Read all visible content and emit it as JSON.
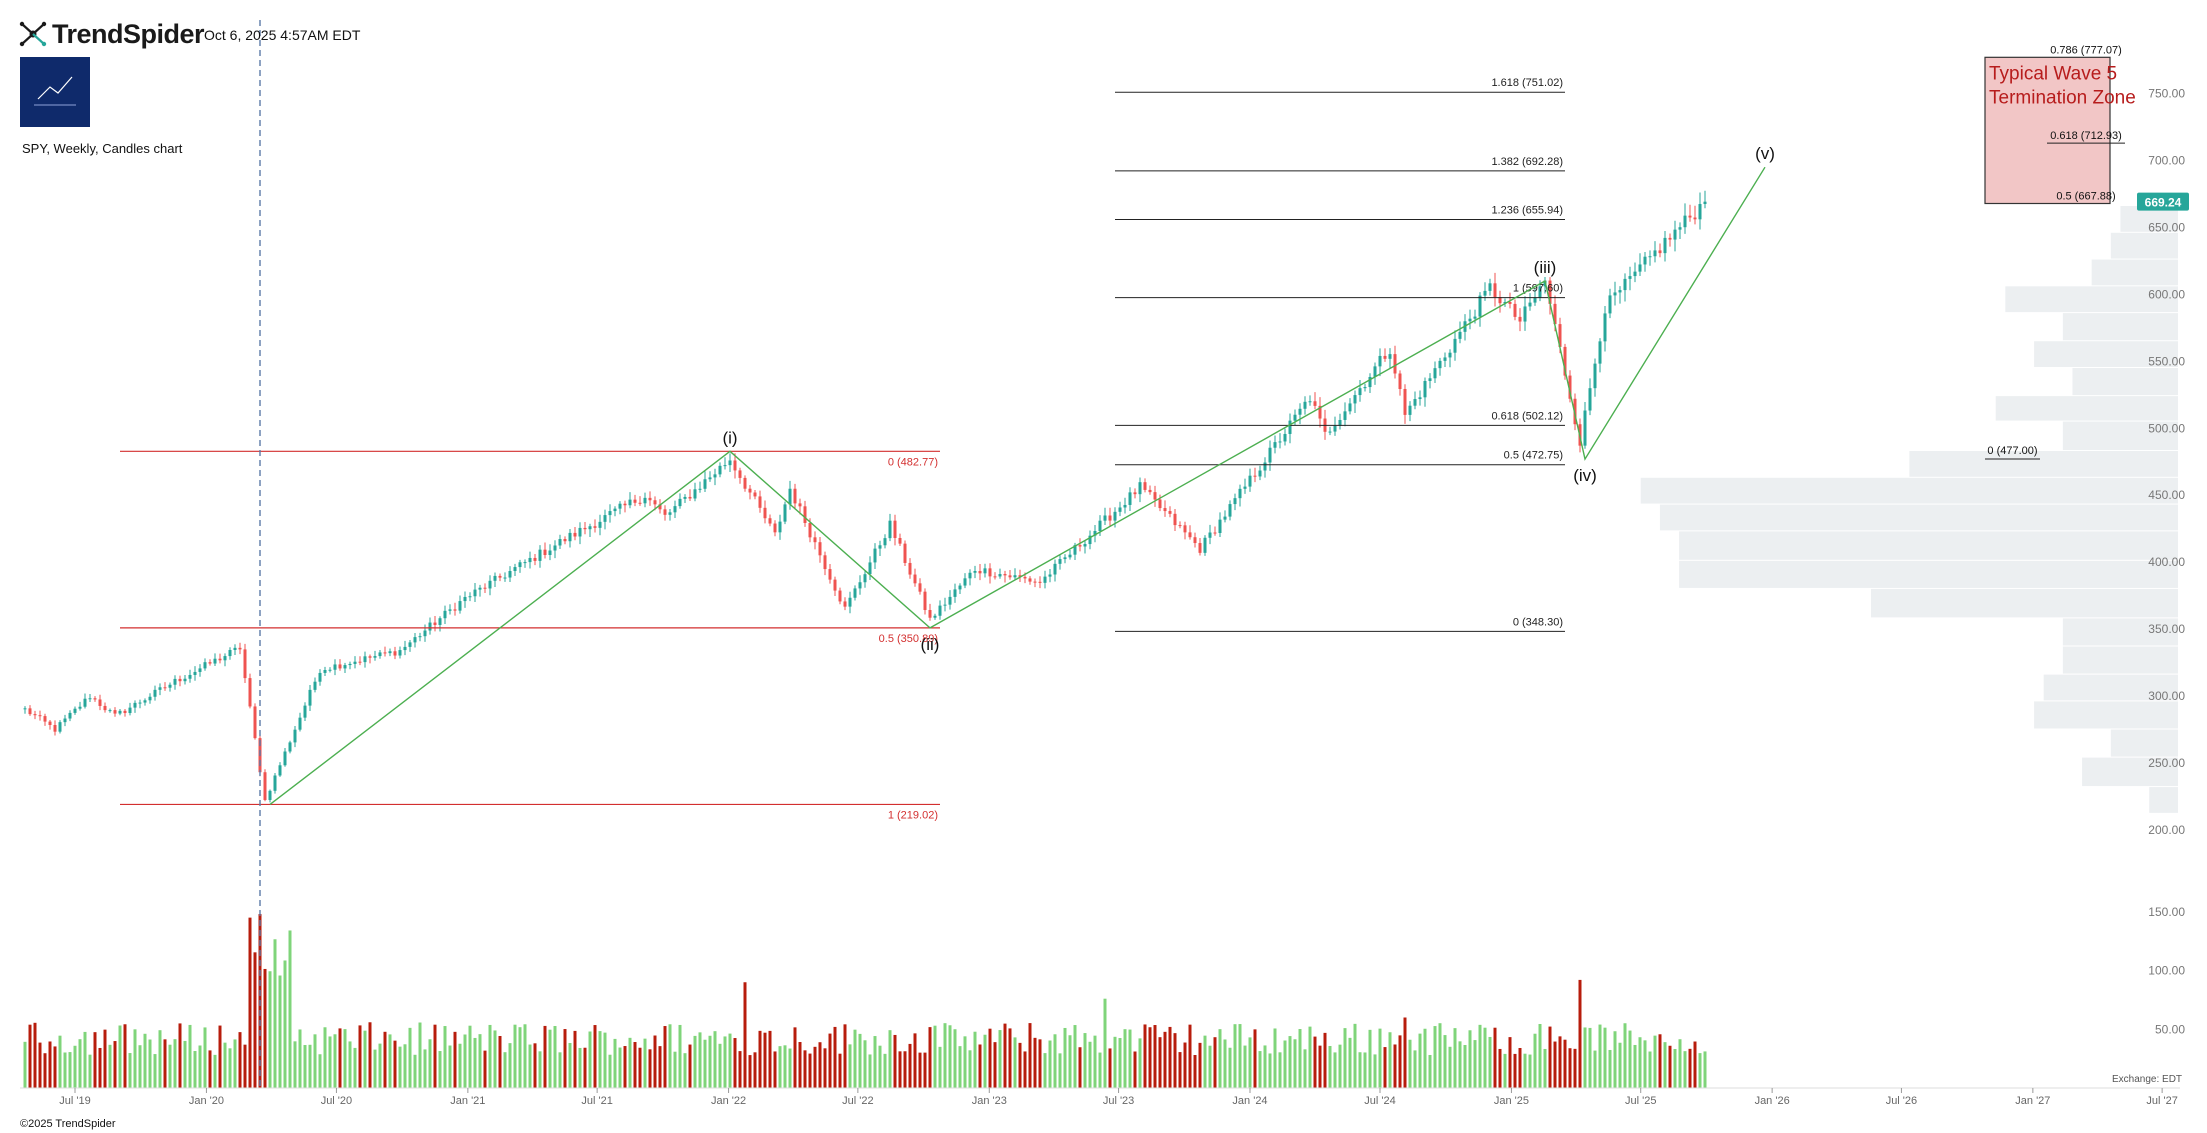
{
  "header": {
    "brand": "TrendSpider",
    "timestamp": "Oct 6, 2025 4:57AM EDT",
    "symbol_desc": "SPY, Weekly, Candles chart",
    "copyright": "©2025 TrendSpider",
    "exchange": "Exchange: EDT"
  },
  "colors": {
    "up": "#26a69a",
    "down": "#ef5350",
    "volume_up": "#7fd47a",
    "volume_down": "#b71c0c",
    "fib_red": "#d32f2f",
    "fib_black": "#222222",
    "wave_line": "#4caf50",
    "volume_profile": "#eceff1",
    "zone_fill": "#f2c6c6",
    "zone_text": "#b71c1c",
    "price_badge": "#26a69a"
  },
  "chart_data": {
    "type": "candlestick",
    "symbol": "SPY",
    "interval": "Weekly",
    "ylim": [
      185,
      790
    ],
    "xlim": [
      "2019-04-15",
      "2027-07-12"
    ],
    "y_ticks": [
      "200.00",
      "250.00",
      "300.00",
      "350.00",
      "400.00",
      "450.00",
      "500.00",
      "550.00",
      "600.00",
      "650.00",
      "700.00",
      "750.00"
    ],
    "volume_ticks": [
      "50.00",
      "100.00",
      "150.00"
    ],
    "x_ticks": [
      {
        "label": "Jul '19",
        "date": "2019-07-01"
      },
      {
        "label": "Jan '20",
        "date": "2020-01-01"
      },
      {
        "label": "Jul '20",
        "date": "2020-07-01"
      },
      {
        "label": "Jan '21",
        "date": "2021-01-01"
      },
      {
        "label": "Jul '21",
        "date": "2021-07-01"
      },
      {
        "label": "Jan '22",
        "date": "2022-01-01"
      },
      {
        "label": "Jul '22",
        "date": "2022-07-01"
      },
      {
        "label": "Jan '23",
        "date": "2023-01-01"
      },
      {
        "label": "Jul '23",
        "date": "2023-07-01"
      },
      {
        "label": "Jan '24",
        "date": "2024-01-01"
      },
      {
        "label": "Jul '24",
        "date": "2024-07-01"
      },
      {
        "label": "Jan '25",
        "date": "2025-01-01"
      },
      {
        "label": "Jul '25",
        "date": "2025-07-01"
      },
      {
        "label": "Jan '26",
        "date": "2026-01-01"
      },
      {
        "label": "Jul '26",
        "date": "2026-07-01"
      },
      {
        "label": "Jan '27",
        "date": "2027-01-01"
      },
      {
        "label": "Jul '27",
        "date": "2027-07-01"
      }
    ],
    "last_price": "669.24",
    "price_path": [
      [
        "2019-04-22",
        290
      ],
      [
        "2019-06-03",
        275
      ],
      [
        "2019-07-22",
        300
      ],
      [
        "2019-08-26",
        285
      ],
      [
        "2019-11-18",
        311
      ],
      [
        "2020-02-17",
        336
      ],
      [
        "2020-03-23",
        222
      ],
      [
        "2020-06-08",
        320
      ],
      [
        "2020-09-28",
        334
      ],
      [
        "2020-12-28",
        373
      ],
      [
        "2021-05-10",
        415
      ],
      [
        "2021-09-06",
        450
      ],
      [
        "2021-10-04",
        434
      ],
      [
        "2022-01-03",
        477
      ],
      [
        "2022-03-07",
        420
      ],
      [
        "2022-03-28",
        455
      ],
      [
        "2022-06-13",
        365
      ],
      [
        "2022-08-15",
        428
      ],
      [
        "2022-10-10",
        357
      ],
      [
        "2022-12-12",
        395
      ],
      [
        "2023-03-13",
        385
      ],
      [
        "2023-07-31",
        456
      ],
      [
        "2023-10-23",
        410
      ],
      [
        "2024-03-25",
        523
      ],
      [
        "2024-04-15",
        495
      ],
      [
        "2024-07-15",
        560
      ],
      [
        "2024-08-05",
        510
      ],
      [
        "2024-12-02",
        605
      ],
      [
        "2025-01-13",
        580
      ],
      [
        "2025-02-17",
        610
      ],
      [
        "2025-04-07",
        490
      ],
      [
        "2025-05-12",
        590
      ],
      [
        "2025-07-28",
        635
      ],
      [
        "2025-09-29",
        669.24
      ]
    ],
    "volume_spikes": [
      {
        "date": "2020-03-02",
        "value": 145
      },
      {
        "date": "2020-03-16",
        "value": 148
      },
      {
        "date": "2022-01-24",
        "value": 90
      },
      {
        "date": "2025-04-07",
        "value": 92
      },
      {
        "date": "2023-06-12",
        "value": 76
      },
      {
        "date": "2024-08-05",
        "value": 60
      }
    ],
    "fib_retracement_red": {
      "start_date": "2019-09-02",
      "end_date": "2022-10-24",
      "levels": [
        {
          "label": "0 (482.77)",
          "value": 482.77
        },
        {
          "label": "0.5 (350.89)",
          "value": 350.89
        },
        {
          "label": "1 (219.02)",
          "value": 219.02
        }
      ]
    },
    "fib_extension": {
      "start_date": "2023-06-26",
      "end_date": "2025-03-17",
      "levels": [
        {
          "label": "1.618 (751.02)",
          "value": 751.02
        },
        {
          "label": "1.382 (692.28)",
          "value": 692.28
        },
        {
          "label": "1.236 (655.94)",
          "value": 655.94
        },
        {
          "label": "1 (597.60)",
          "value": 597.6
        },
        {
          "label": "0.618 (502.12)",
          "value": 502.12
        },
        {
          "label": "0.5 (472.75)",
          "value": 472.75
        },
        {
          "label": "0 (348.30)",
          "value": 348.3
        }
      ]
    },
    "wave_path": [
      {
        "date": "2020-03-30",
        "value": 219
      },
      {
        "date": "2022-01-03",
        "value": 482.77
      },
      {
        "date": "2022-10-10",
        "value": 350.89
      },
      {
        "date": "2025-02-17",
        "value": 610
      },
      {
        "date": "2025-04-14",
        "value": 477
      },
      {
        "date": "2025-12-22",
        "value": 695
      }
    ],
    "wave_labels": [
      {
        "text": "(i)",
        "date": "2022-01-03",
        "value": 482.77,
        "pos": "above"
      },
      {
        "text": "(ii)",
        "date": "2022-10-10",
        "value": 350.89,
        "pos": "below"
      },
      {
        "text": "(iii)",
        "date": "2025-02-17",
        "value": 610,
        "pos": "above"
      },
      {
        "text": "(iv)",
        "date": "2025-04-14",
        "value": 477,
        "pos": "below"
      },
      {
        "text": "(v)",
        "date": "2025-12-22",
        "value": 695,
        "pos": "above"
      }
    ],
    "event_line_date": "2020-03-16",
    "termination_zone": {
      "title": "Typical Wave 5 Termination Zone",
      "start_date": "2026-10-26",
      "end_date": "2027-04-19",
      "top": 777.07,
      "bottom": 667.88,
      "levels": [
        {
          "label": "0.786 (777.07)",
          "value": 777.07
        },
        {
          "label": "0.618 (712.93)",
          "value": 712.93
        },
        {
          "label": "0.5 (667.88)",
          "value": 667.88
        }
      ]
    },
    "target_line": {
      "label": "0 (477.00)",
      "value": 477.0,
      "start_date": "2026-10-26",
      "end_date": "2027-01-11"
    },
    "volume_profile": [
      {
        "low": 212,
        "high": 232,
        "value": 0.015
      },
      {
        "low": 232,
        "high": 254,
        "value": 0.05
      },
      {
        "low": 254,
        "high": 275,
        "value": 0.035
      },
      {
        "low": 275,
        "high": 296,
        "value": 0.075
      },
      {
        "low": 296,
        "high": 316,
        "value": 0.07
      },
      {
        "low": 316,
        "high": 337,
        "value": 0.06
      },
      {
        "low": 337,
        "high": 358,
        "value": 0.06
      },
      {
        "low": 358,
        "high": 380,
        "value": 0.16
      },
      {
        "low": 380,
        "high": 401,
        "value": 0.26
      },
      {
        "low": 401,
        "high": 423,
        "value": 0.26
      },
      {
        "low": 423,
        "high": 443,
        "value": 0.27
      },
      {
        "low": 443,
        "high": 463,
        "value": 0.28
      },
      {
        "low": 463,
        "high": 483,
        "value": 0.14
      },
      {
        "low": 483,
        "high": 505,
        "value": 0.06
      },
      {
        "low": 505,
        "high": 524,
        "value": 0.095
      },
      {
        "low": 524,
        "high": 545,
        "value": 0.055
      },
      {
        "low": 545,
        "high": 565,
        "value": 0.075
      },
      {
        "low": 565,
        "high": 586,
        "value": 0.06
      },
      {
        "low": 586,
        "high": 606,
        "value": 0.09
      },
      {
        "low": 606,
        "high": 626,
        "value": 0.045
      },
      {
        "low": 626,
        "high": 646,
        "value": 0.035
      },
      {
        "low": 646,
        "high": 666,
        "value": 0.03
      }
    ]
  }
}
